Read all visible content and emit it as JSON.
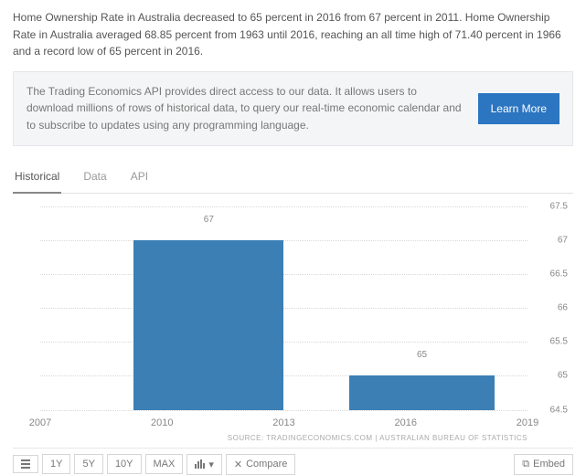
{
  "description": "Home Ownership Rate in Australia decreased to 65 percent in 2016 from 67 percent in 2011. Home Ownership Rate in Australia averaged 68.85 percent from 1963 until 2016, reaching an all time high of 71.40 percent in 1966 and a record low of 65 percent in 2016.",
  "api_box": {
    "text": "The Trading Economics API provides direct access to our data. It allows users to download millions of rows of historical data, to query our real-time economic calendar and to subscribe to updates using any programming language.",
    "button": "Learn More"
  },
  "tabs": {
    "items": [
      "Historical",
      "Data",
      "API"
    ],
    "active_index": 0
  },
  "chart": {
    "type": "bar",
    "ylim": [
      64.5,
      67.5
    ],
    "yticks": [
      64.5,
      65,
      65.5,
      66,
      66.5,
      67,
      67.5
    ],
    "xticks": [
      2007,
      2010,
      2013,
      2016,
      2019
    ],
    "xlim": [
      2007,
      2019
    ],
    "bars": [
      {
        "x_start": 2009.3,
        "x_end": 2013,
        "value": 67,
        "label": "67"
      },
      {
        "x_start": 2014.6,
        "x_end": 2018.2,
        "value": 65,
        "label": "65"
      }
    ],
    "bar_color": "#3b7fb5",
    "grid_color": "#d8d8d8",
    "tick_color": "#888888",
    "source_text": "SOURCE: TRADINGECONOMICS.COM  |  AUSTRALIAN BUREAU OF STATISTICS"
  },
  "toolbar": {
    "ranges": [
      "1Y",
      "5Y",
      "10Y",
      "MAX"
    ],
    "compare": "Compare",
    "embed": "Embed"
  }
}
